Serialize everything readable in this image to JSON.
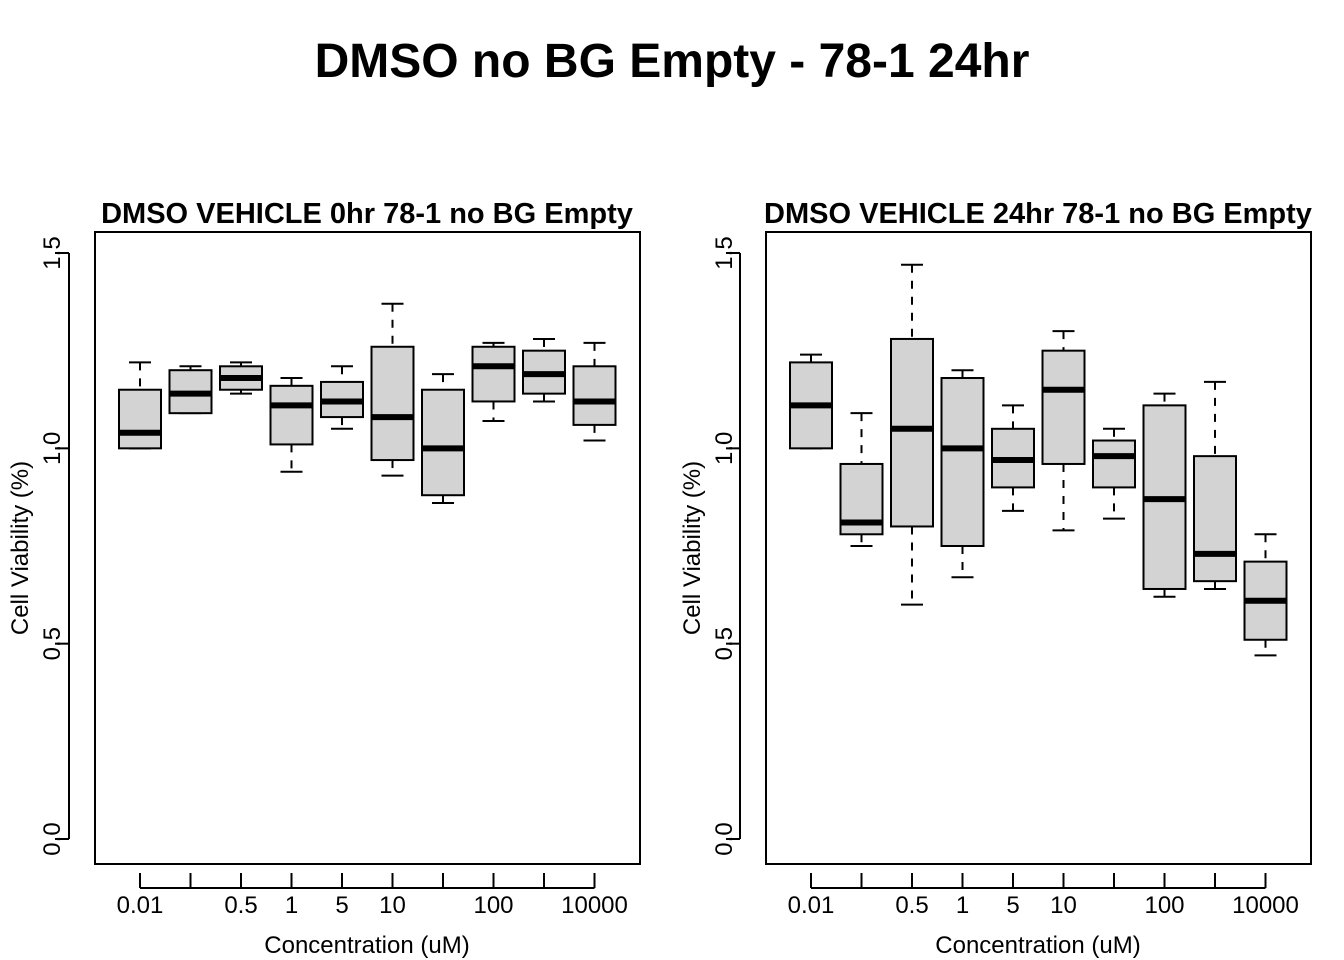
{
  "figure_title": "DMSO no BG Empty - 78-1 24hr",
  "chart_data": [
    {
      "type": "boxplot",
      "title": "DMSO VEHICLE 0hr 78-1 no BG Empty",
      "xlabel": "Concentration (uM)",
      "ylabel": "Cell Viability (%)",
      "ylim": [
        0,
        1.5
      ],
      "yticks": [
        "0.0",
        "0.5",
        "1.0",
        "1.5"
      ],
      "xtick_labels": [
        "0.01",
        "",
        "0.5",
        "1",
        "5",
        "10",
        "",
        "100",
        "",
        "10000"
      ],
      "boxes": [
        {
          "min": 1.0,
          "q1": 1.0,
          "median": 1.04,
          "q3": 1.15,
          "max": 1.22
        },
        {
          "min": 1.09,
          "q1": 1.09,
          "median": 1.14,
          "q3": 1.2,
          "max": 1.21
        },
        {
          "min": 1.14,
          "q1": 1.15,
          "median": 1.18,
          "q3": 1.21,
          "max": 1.22
        },
        {
          "min": 0.94,
          "q1": 1.01,
          "median": 1.11,
          "q3": 1.16,
          "max": 1.18
        },
        {
          "min": 1.05,
          "q1": 1.08,
          "median": 1.12,
          "q3": 1.17,
          "max": 1.21
        },
        {
          "min": 0.93,
          "q1": 0.97,
          "median": 1.08,
          "q3": 1.26,
          "max": 1.37
        },
        {
          "min": 0.86,
          "q1": 0.88,
          "median": 1.0,
          "q3": 1.15,
          "max": 1.19
        },
        {
          "min": 1.07,
          "q1": 1.12,
          "median": 1.21,
          "q3": 1.26,
          "max": 1.27
        },
        {
          "min": 1.12,
          "q1": 1.14,
          "median": 1.19,
          "q3": 1.25,
          "max": 1.28
        },
        {
          "min": 1.02,
          "q1": 1.06,
          "median": 1.12,
          "q3": 1.21,
          "max": 1.27
        }
      ]
    },
    {
      "type": "boxplot",
      "title": "DMSO VEHICLE 24hr 78-1 no BG Empty",
      "xlabel": "Concentration (uM)",
      "ylabel": "Cell Viability (%)",
      "ylim": [
        0,
        1.5
      ],
      "yticks": [
        "0.0",
        "0.5",
        "1.0",
        "1.5"
      ],
      "xtick_labels": [
        "0.01",
        "",
        "0.5",
        "1",
        "5",
        "10",
        "",
        "100",
        "",
        "10000"
      ],
      "boxes": [
        {
          "min": 1.0,
          "q1": 1.0,
          "median": 1.11,
          "q3": 1.22,
          "max": 1.24
        },
        {
          "min": 0.75,
          "q1": 0.78,
          "median": 0.81,
          "q3": 0.96,
          "max": 1.09
        },
        {
          "min": 0.6,
          "q1": 0.8,
          "median": 1.05,
          "q3": 1.28,
          "max": 1.47
        },
        {
          "min": 0.67,
          "q1": 0.75,
          "median": 1.0,
          "q3": 1.18,
          "max": 1.2
        },
        {
          "min": 0.84,
          "q1": 0.9,
          "median": 0.97,
          "q3": 1.05,
          "max": 1.11
        },
        {
          "min": 0.79,
          "q1": 0.96,
          "median": 1.15,
          "q3": 1.25,
          "max": 1.3
        },
        {
          "min": 0.82,
          "q1": 0.9,
          "median": 0.98,
          "q3": 1.02,
          "max": 1.05
        },
        {
          "min": 0.62,
          "q1": 0.64,
          "median": 0.87,
          "q3": 1.11,
          "max": 1.14
        },
        {
          "min": 0.64,
          "q1": 0.66,
          "median": 0.73,
          "q3": 0.98,
          "max": 1.17
        },
        {
          "min": 0.47,
          "q1": 0.51,
          "median": 0.61,
          "q3": 0.71,
          "max": 0.78
        }
      ]
    }
  ]
}
